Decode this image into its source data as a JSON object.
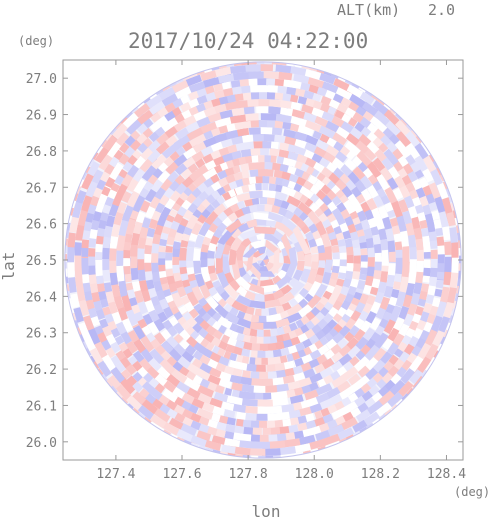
{
  "header": {
    "altitude_label": "ALT(km)",
    "altitude_value": "2.0",
    "timestamp": "2017/10/24 04:22:00"
  },
  "chart_data": {
    "type": "heatmap",
    "title": "2017/10/24 04:22:00",
    "subtitle": "ALT(km) 2.0",
    "xlabel": "lon",
    "ylabel": "lat",
    "x_unit": "(deg)",
    "y_unit": "(deg)",
    "xlim": [
      127.24,
      128.45
    ],
    "ylim": [
      25.95,
      27.05
    ],
    "x_ticks": [
      127.4,
      127.6,
      127.8,
      128.0,
      128.2,
      128.4
    ],
    "x_tick_labels": [
      "127.4",
      "127.6",
      "127.8",
      "128.0",
      "128.2",
      "128.4"
    ],
    "y_ticks": [
      26.0,
      26.1,
      26.2,
      26.3,
      26.4,
      26.5,
      26.6,
      26.7,
      26.8,
      26.9,
      27.0
    ],
    "y_tick_labels": [
      "26.0",
      "26.1",
      "26.2",
      "26.3",
      "26.4",
      "26.5",
      "26.6",
      "26.7",
      "26.8",
      "26.9",
      "27.0"
    ],
    "center": {
      "lon": 127.845,
      "lat": 26.5
    },
    "radius_deg_lat": 0.545,
    "colors": {
      "positive": "#f5a0a0",
      "negative": "#a8a8f0",
      "neutral": "#ffffff",
      "frame": "#9a9a9a"
    },
    "grid": false
  }
}
